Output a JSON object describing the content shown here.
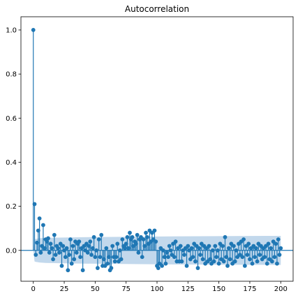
{
  "chart_data": {
    "type": "stem",
    "title": "Autocorrelation",
    "xlabel": "",
    "ylabel": "",
    "xlim": [
      -10,
      210
    ],
    "ylim": [
      -0.14,
      1.06
    ],
    "xticks": [
      0,
      25,
      50,
      75,
      100,
      125,
      150,
      175,
      200
    ],
    "yticks": [
      0.0,
      0.2,
      0.4,
      0.6,
      0.8,
      1.0
    ],
    "ytick_labels": [
      "0.0",
      "0.2",
      "0.4",
      "0.6",
      "0.8",
      "1.0"
    ],
    "grid": false,
    "legend": false,
    "colors": {
      "stem": "#1f77b4",
      "confidence_band": "#aecbe6",
      "zero_line": "#1f77b4"
    },
    "confidence_band": {
      "lags": [
        0,
        1,
        2,
        3,
        5,
        10,
        20,
        40,
        80,
        120,
        160,
        200
      ],
      "upper": [
        0.0,
        0.05,
        0.052,
        0.053,
        0.055,
        0.057,
        0.058,
        0.06,
        0.062,
        0.064,
        0.065,
        0.066
      ],
      "lower": [
        0.0,
        -0.05,
        -0.052,
        -0.053,
        -0.055,
        -0.057,
        -0.058,
        -0.06,
        -0.062,
        -0.064,
        -0.065,
        -0.066
      ]
    },
    "series": [
      {
        "x": [
          0,
          1,
          2,
          3,
          4,
          5,
          6,
          7,
          8,
          9,
          10,
          11,
          12,
          13,
          14,
          15,
          16,
          17,
          18,
          19,
          20,
          21,
          22,
          23,
          24,
          25,
          26,
          27,
          28,
          29,
          30,
          31,
          32,
          33,
          34,
          35,
          36,
          37,
          38,
          39,
          40,
          41,
          42,
          43,
          44,
          45,
          46,
          47,
          48,
          49,
          50,
          51,
          52,
          53,
          54,
          55,
          56,
          57,
          58,
          59,
          60,
          61,
          62,
          63,
          64,
          65,
          66,
          67,
          68,
          69,
          70,
          71,
          72,
          73,
          74,
          75,
          76,
          77,
          78,
          79,
          80,
          81,
          82,
          83,
          84,
          85,
          86,
          87,
          88,
          89,
          90,
          91,
          92,
          93,
          94,
          95,
          96,
          97,
          98,
          99,
          100,
          101,
          102,
          103,
          104,
          105,
          106,
          107,
          108,
          109,
          110,
          111,
          112,
          113,
          114,
          115,
          116,
          117,
          118,
          119,
          120,
          121,
          122,
          123,
          124,
          125,
          126,
          127,
          128,
          129,
          130,
          131,
          132,
          133,
          134,
          135,
          136,
          137,
          138,
          139,
          140,
          141,
          142,
          143,
          144,
          145,
          146,
          147,
          148,
          149,
          150,
          151,
          152,
          153,
          154,
          155,
          156,
          157,
          158,
          159,
          160,
          161,
          162,
          163,
          164,
          165,
          166,
          167,
          168,
          169,
          170,
          171,
          172,
          173,
          174,
          175,
          176,
          177,
          178,
          179,
          180,
          181,
          182,
          183,
          184,
          185,
          186,
          187,
          188,
          189,
          190,
          191,
          192,
          193,
          194,
          195,
          196,
          197,
          198,
          199,
          200
        ],
        "values": [
          1.0,
          0.21,
          -0.02,
          0.035,
          0.09,
          0.145,
          -0.01,
          0.02,
          0.115,
          0.01,
          0.05,
          0.04,
          0.055,
          -0.01,
          0.03,
          0.01,
          -0.04,
          0.07,
          -0.02,
          0.02,
          0.01,
          -0.01,
          0.03,
          -0.07,
          0.02,
          0.0,
          -0.03,
          0.01,
          -0.09,
          -0.02,
          0.05,
          -0.06,
          0.02,
          -0.04,
          0.04,
          -0.01,
          0.03,
          0.04,
          -0.03,
          0.01,
          -0.09,
          0.02,
          0.0,
          0.03,
          -0.01,
          0.02,
          0.04,
          -0.02,
          0.01,
          0.06,
          -0.03,
          0.0,
          -0.08,
          0.05,
          -0.03,
          0.07,
          -0.07,
          -0.04,
          -0.07,
          0.01,
          -0.06,
          -0.03,
          -0.09,
          -0.08,
          0.02,
          -0.03,
          -0.05,
          -0.03,
          0.03,
          -0.05,
          0.0,
          -0.04,
          0.05,
          0.02,
          0.01,
          0.03,
          0.06,
          0.01,
          0.08,
          0.05,
          0.06,
          0.02,
          0.04,
          0.03,
          0.07,
          -0.01,
          0.05,
          0.06,
          -0.03,
          0.05,
          0.02,
          0.08,
          0.06,
          0.03,
          0.09,
          0.04,
          0.08,
          0.05,
          0.09,
          0.04,
          -0.07,
          -0.08,
          -0.06,
          0.01,
          -0.07,
          0.0,
          -0.03,
          -0.06,
          -0.01,
          -0.03,
          0.02,
          0.0,
          -0.02,
          0.03,
          -0.03,
          0.04,
          -0.05,
          0.01,
          -0.05,
          0.02,
          -0.05,
          0.0,
          -0.02,
          0.01,
          -0.07,
          0.02,
          0.0,
          -0.04,
          0.01,
          -0.03,
          0.03,
          -0.05,
          0.02,
          -0.08,
          0.01,
          -0.02,
          0.03,
          -0.04,
          0.02,
          -0.06,
          0.01,
          -0.05,
          0.02,
          -0.04,
          -0.06,
          0.0,
          -0.05,
          0.02,
          -0.03,
          0.0,
          -0.06,
          0.03,
          -0.04,
          0.02,
          -0.05,
          0.06,
          -0.03,
          -0.07,
          0.01,
          -0.04,
          0.03,
          -0.06,
          0.02,
          -0.05,
          0.0,
          -0.03,
          0.03,
          -0.02,
          0.04,
          -0.03,
          0.05,
          -0.07,
          0.02,
          -0.02,
          0.03,
          -0.04,
          0.01,
          -0.06,
          0.02,
          -0.03,
          0.01,
          -0.05,
          0.03,
          -0.02,
          0.02,
          -0.04,
          0.01,
          -0.03,
          0.02,
          -0.06,
          0.03,
          -0.04,
          0.01,
          -0.05,
          0.04,
          -0.03,
          0.03,
          -0.06,
          0.05,
          -0.02,
          0.01
        ]
      }
    ]
  }
}
